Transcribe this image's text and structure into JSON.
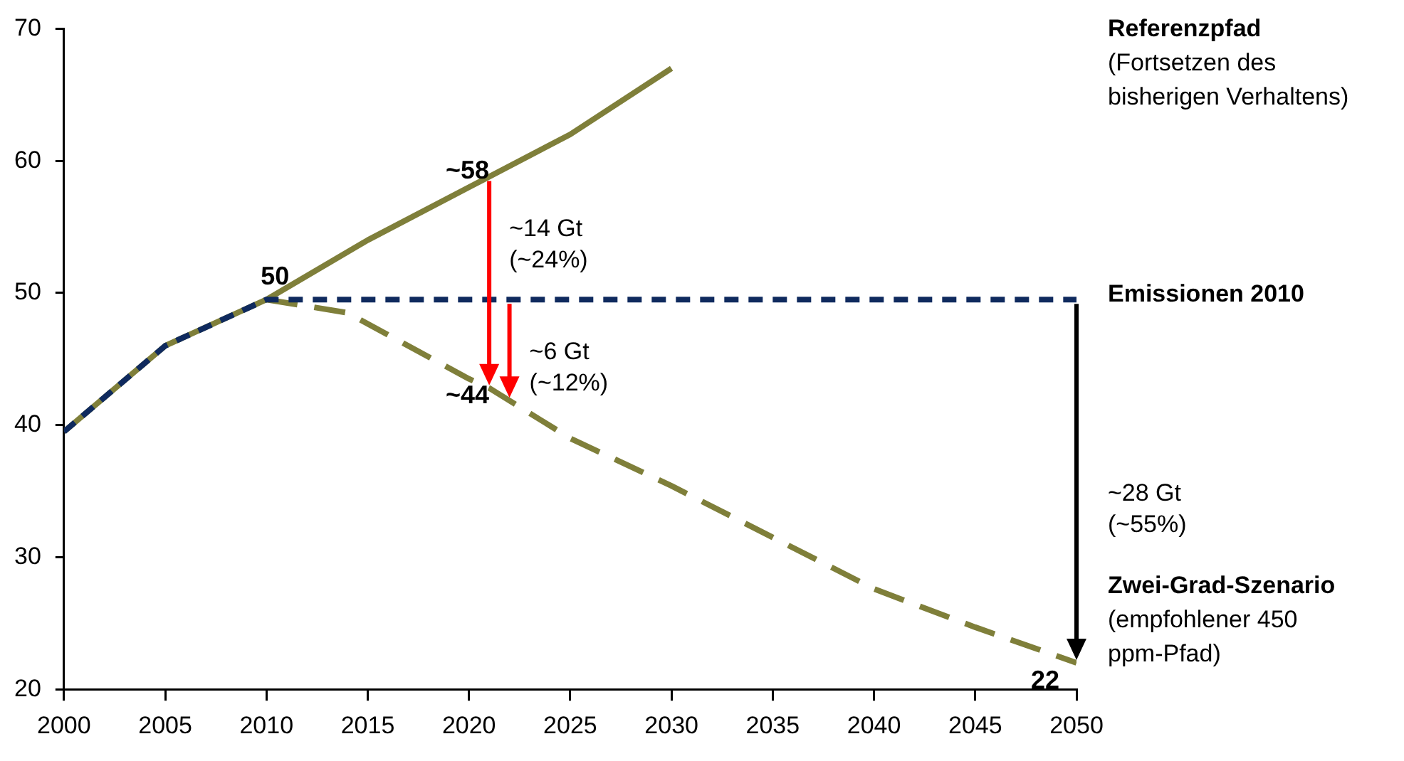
{
  "chart_data": {
    "type": "line",
    "xlim": [
      2000,
      2050
    ],
    "xticks": [
      2000,
      2005,
      2010,
      2015,
      2020,
      2025,
      2030,
      2035,
      2040,
      2045,
      2050
    ],
    "ylim": [
      20,
      70
    ],
    "yticks": [
      20,
      30,
      40,
      50,
      60,
      70
    ],
    "grid": false,
    "legend": false,
    "marker": "none",
    "series": [
      {
        "name": "Referenzpfad",
        "color": "#7f7f3a",
        "line_style": "solid",
        "x": [
          2000,
          2005,
          2010,
          2015,
          2020,
          2025,
          2030
        ],
        "values": [
          39.5,
          46,
          49.5,
          54,
          58,
          62,
          67
        ]
      },
      {
        "name": "Emissionen 2010",
        "color": "#0f2a5e",
        "line_style": "dashed",
        "x": [
          2000,
          2005,
          2010,
          2020,
          2030,
          2040,
          2050
        ],
        "values": [
          39.5,
          46,
          49.5,
          49.5,
          49.5,
          49.5,
          49.5
        ]
      },
      {
        "name": "Zwei-Grad-Szenario",
        "color": "#7f7f3a",
        "line_style": "dashed",
        "x": [
          2010,
          2014,
          2020,
          2021,
          2025,
          2030,
          2035,
          2040,
          2045,
          2050
        ],
        "values": [
          49.5,
          48.5,
          43.5,
          42.8,
          39,
          35.4,
          31.5,
          27.6,
          24.7,
          22
        ]
      }
    ],
    "annotations": [
      {
        "text": "50",
        "x": 2010,
        "y": 50
      },
      {
        "text": "~58",
        "x": 2021,
        "y": 58
      },
      {
        "text": "~44",
        "x": 2021,
        "y": 44
      },
      {
        "text": "~14 Gt\n(~24%)",
        "x": 2021,
        "y": 58.8
      },
      {
        "text": "~6 Gt\n(~12%)",
        "x": 2022,
        "y": 49.5
      },
      {
        "text": "22",
        "x": 2050,
        "y": 22
      },
      "(Fortsetzen des bisherigen Verhaltens)",
      "(empfohlener 450 ppm-Pfad)",
      "~28 Gt\n(~55%)"
    ]
  }
}
